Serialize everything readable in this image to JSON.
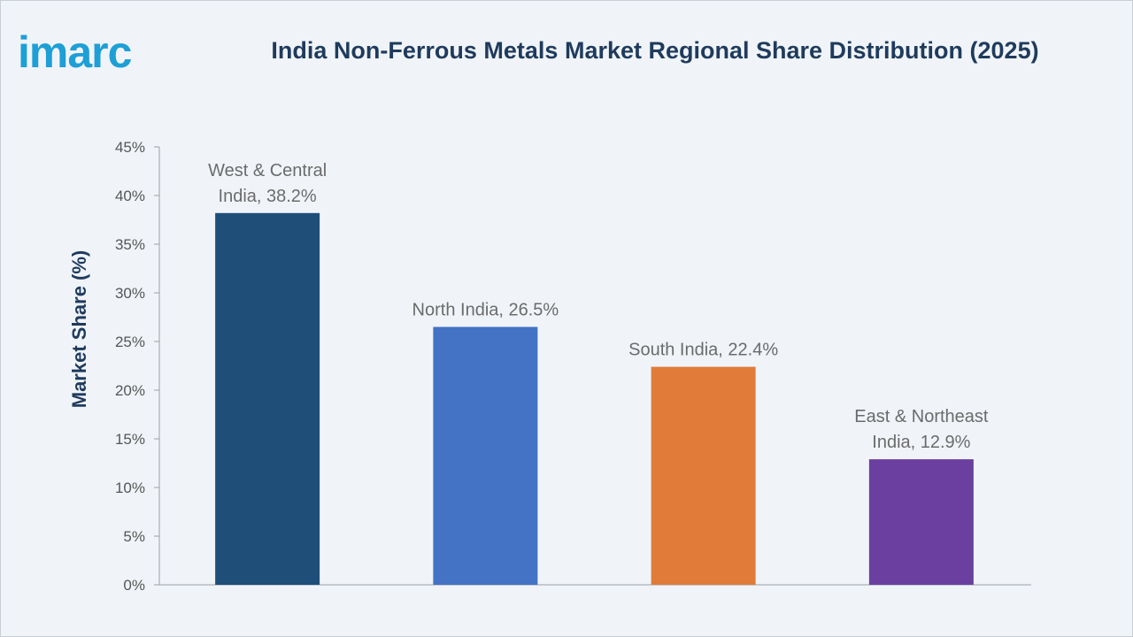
{
  "logo": "imarc",
  "chart_data": {
    "type": "bar",
    "title": "India Non-Ferrous Metals Market Regional Share Distribution (2025)",
    "ylabel": "Market Share (%)",
    "xlabel": "",
    "ylim": [
      0,
      45
    ],
    "ytick_step": 5,
    "ytick_suffix": "%",
    "grid": false,
    "categories": [
      "West & Central India",
      "North India",
      "South India",
      "East & Northeast India"
    ],
    "values": [
      38.2,
      26.5,
      22.4,
      12.9
    ],
    "data_labels": [
      [
        "West & Central",
        "India, 38.2%"
      ],
      [
        "North India, 26.5%"
      ],
      [
        "South India, 22.4%"
      ],
      [
        "East & Northeast",
        "India, 12.9%"
      ]
    ],
    "colors": [
      "#1f4e79",
      "#4472c4",
      "#e07b39",
      "#6b3fa0"
    ]
  }
}
